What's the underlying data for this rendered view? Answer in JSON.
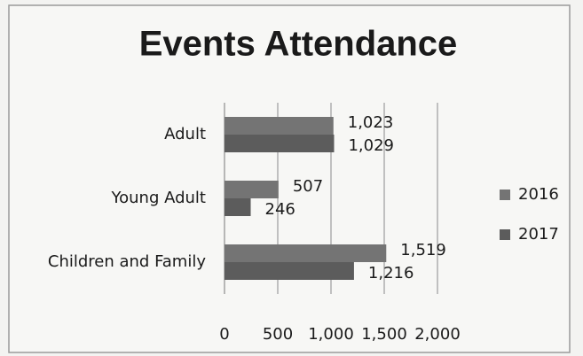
{
  "chart_data": {
    "type": "hbar",
    "title": "Events Attendance",
    "categories": [
      "Adult",
      "Young Adult",
      "Children and Family"
    ],
    "series": [
      {
        "name": "2016",
        "color": "#747474",
        "values": [
          1023,
          507,
          1519
        ],
        "value_labels": [
          "1,023",
          "507",
          "1,519"
        ]
      },
      {
        "name": "2017",
        "color": "#5c5c5c",
        "values": [
          1029,
          246,
          1216
        ],
        "value_labels": [
          "1,029",
          "246",
          "1,216"
        ]
      }
    ],
    "xlim": [
      0,
      2000
    ],
    "xticks": [
      0,
      500,
      {
        "value": 1000,
        "label": "1,000"
      },
      {
        "value": 1500,
        "label": "1,500"
      },
      {
        "value": 2000,
        "label": "2,000"
      }
    ],
    "grid": true,
    "legend": "right"
  }
}
